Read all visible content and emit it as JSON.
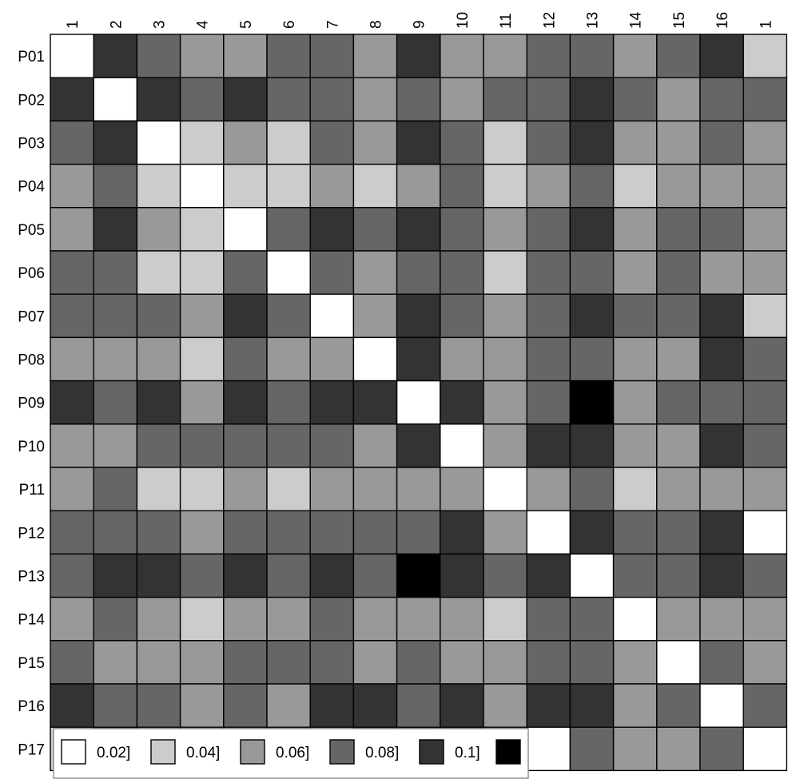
{
  "chart_data": {
    "type": "heatmap",
    "title": "",
    "row_labels": [
      "P01",
      "P02",
      "P03",
      "P04",
      "P05",
      "P06",
      "P07",
      "P08",
      "P09",
      "P10",
      "P11",
      "P12",
      "P13",
      "P14",
      "P15",
      "P16",
      "P17"
    ],
    "col_labels": [
      "1",
      "2",
      "3",
      "4",
      "5",
      "6",
      "7",
      "8",
      "9",
      "10",
      "11",
      "12",
      "13",
      "14",
      "15",
      "16",
      "1"
    ],
    "levels": [
      {
        "label": "0.02]",
        "color": "#ffffff"
      },
      {
        "label": "0.04]",
        "color": "#cccccc"
      },
      {
        "label": "0.06]",
        "color": "#999999"
      },
      {
        "label": "0.08]",
        "color": "#666666"
      },
      {
        "label": "0.1]",
        "color": "#333333"
      },
      {
        "label": "",
        "color": "#000000"
      }
    ],
    "legend_placement": "bottom-left",
    "bin_index_matrix": [
      [
        0,
        4,
        3,
        2,
        2,
        3,
        3,
        2,
        4,
        2,
        2,
        3,
        3,
        2,
        3,
        4,
        1
      ],
      [
        4,
        0,
        4,
        3,
        4,
        3,
        3,
        2,
        3,
        2,
        3,
        3,
        4,
        3,
        2,
        3,
        3
      ],
      [
        3,
        4,
        0,
        1,
        2,
        1,
        3,
        2,
        4,
        3,
        1,
        3,
        4,
        2,
        2,
        3,
        2
      ],
      [
        2,
        3,
        1,
        0,
        1,
        1,
        2,
        1,
        2,
        3,
        1,
        2,
        3,
        1,
        2,
        2,
        2
      ],
      [
        2,
        4,
        2,
        1,
        0,
        3,
        4,
        3,
        4,
        3,
        2,
        3,
        4,
        2,
        3,
        3,
        2
      ],
      [
        3,
        3,
        1,
        1,
        3,
        0,
        3,
        2,
        3,
        3,
        1,
        3,
        3,
        2,
        3,
        2,
        2
      ],
      [
        3,
        3,
        3,
        2,
        4,
        3,
        0,
        2,
        4,
        3,
        2,
        3,
        4,
        3,
        3,
        4,
        1
      ],
      [
        2,
        2,
        2,
        1,
        3,
        2,
        2,
        0,
        4,
        2,
        2,
        3,
        3,
        2,
        2,
        4,
        3
      ],
      [
        4,
        3,
        4,
        2,
        4,
        3,
        4,
        4,
        0,
        4,
        2,
        3,
        5,
        2,
        3,
        3,
        3
      ],
      [
        2,
        2,
        3,
        3,
        3,
        3,
        3,
        2,
        4,
        0,
        2,
        4,
        4,
        2,
        2,
        4,
        3
      ],
      [
        2,
        3,
        1,
        1,
        2,
        1,
        2,
        2,
        2,
        2,
        0,
        2,
        3,
        1,
        2,
        2,
        2
      ],
      [
        3,
        3,
        3,
        2,
        3,
        3,
        3,
        3,
        3,
        4,
        2,
        0,
        4,
        3,
        3,
        4,
        0
      ],
      [
        3,
        4,
        4,
        3,
        4,
        3,
        4,
        3,
        5,
        4,
        3,
        4,
        0,
        3,
        3,
        4,
        3
      ],
      [
        2,
        3,
        2,
        1,
        2,
        2,
        3,
        2,
        2,
        2,
        1,
        3,
        3,
        0,
        2,
        2,
        2
      ],
      [
        3,
        2,
        2,
        2,
        3,
        3,
        3,
        2,
        3,
        2,
        2,
        3,
        3,
        2,
        0,
        3,
        2
      ],
      [
        4,
        3,
        3,
        2,
        3,
        2,
        4,
        4,
        3,
        4,
        2,
        4,
        4,
        2,
        3,
        0,
        3
      ],
      [
        1,
        3,
        2,
        2,
        2,
        2,
        1,
        3,
        3,
        3,
        2,
        0,
        3,
        2,
        2,
        3,
        0
      ]
    ]
  }
}
